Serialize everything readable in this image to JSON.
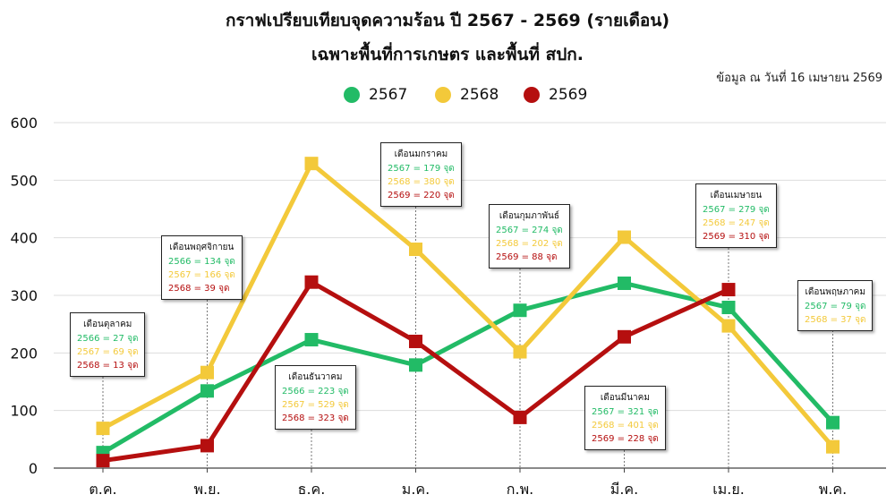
{
  "title_line1": "กราฟเปรียบเทียบจุดความร้อน ปี 2567 - 2569 (รายเดือน)",
  "title_line2": "เฉพาะพื้นที่การเกษตร และพื้นที่ สปก.",
  "source_note": "ข้อมูล ณ วันที่ 16 เมษายน 2569",
  "colors": {
    "2567": "#22bb66",
    "2568": "#f3c93a",
    "2569": "#b50f0f",
    "grid": "#dddddd",
    "axis": "#444444"
  },
  "chart_data": {
    "type": "line",
    "categories": [
      "ต.ค.",
      "พ.ย.",
      "ธ.ค.",
      "ม.ค.",
      "ก.พ.",
      "มี.ค.",
      "เม.ย.",
      "พ.ค."
    ],
    "yticks": [
      "0",
      "100",
      "200",
      "300",
      "400",
      "500",
      "600"
    ],
    "ylim": [
      0,
      600
    ],
    "grid": "horizontal",
    "legend_position": "top-center",
    "series": [
      {
        "name": "2567",
        "color": "#22bb66",
        "values": [
          27,
          134,
          223,
          179,
          274,
          321,
          279,
          79
        ]
      },
      {
        "name": "2568",
        "color": "#f3c93a",
        "values": [
          69,
          166,
          529,
          380,
          202,
          401,
          247,
          37
        ]
      },
      {
        "name": "2569",
        "color": "#b50f0f",
        "values": [
          13,
          39,
          323,
          220,
          88,
          228,
          310,
          null
        ]
      }
    ],
    "annotations": [
      {
        "cat": 0,
        "title": "เดือนตุลาคม",
        "lines": [
          {
            "text": "2566 = 27 จุด",
            "color": "#22bb66"
          },
          {
            "text": "2567 = 69 จุด",
            "color": "#f3c93a"
          },
          {
            "text": "2568 = 13 จุด",
            "color": "#b50f0f"
          }
        ]
      },
      {
        "cat": 1,
        "title": "เดือนพฤศจิกายน",
        "lines": [
          {
            "text": "2566 = 134 จุด",
            "color": "#22bb66"
          },
          {
            "text": "2567 = 166 จุด",
            "color": "#f3c93a"
          },
          {
            "text": "2568 = 39 จุด",
            "color": "#b50f0f"
          }
        ]
      },
      {
        "cat": 2,
        "title": "เดือนธันวาคม",
        "lines": [
          {
            "text": "2566 = 223 จุด",
            "color": "#22bb66"
          },
          {
            "text": "2567 = 529 จุด",
            "color": "#f3c93a"
          },
          {
            "text": "2568 = 323 จุด",
            "color": "#b50f0f"
          }
        ]
      },
      {
        "cat": 3,
        "title": "เดือนมกราคม",
        "lines": [
          {
            "text": "2567 = 179 จุด",
            "color": "#22bb66"
          },
          {
            "text": "2568 = 380 จุด",
            "color": "#f3c93a"
          },
          {
            "text": "2569 = 220 จุด",
            "color": "#b50f0f"
          }
        ]
      },
      {
        "cat": 4,
        "title": "เดือนกุมภาพันธ์",
        "lines": [
          {
            "text": "2567 = 274 จุด",
            "color": "#22bb66"
          },
          {
            "text": "2568 = 202 จุด",
            "color": "#f3c93a"
          },
          {
            "text": "2569 = 88 จุด",
            "color": "#b50f0f"
          }
        ]
      },
      {
        "cat": 5,
        "title": "เดือนมีนาคม",
        "lines": [
          {
            "text": "2567 = 321 จุด",
            "color": "#22bb66"
          },
          {
            "text": "2568 = 401 จุด",
            "color": "#f3c93a"
          },
          {
            "text": "2569 = 228 จุด",
            "color": "#b50f0f"
          }
        ]
      },
      {
        "cat": 6,
        "title": "เดือนเมษายน",
        "lines": [
          {
            "text": "2567 = 279 จุด",
            "color": "#22bb66"
          },
          {
            "text": "2568 = 247 จุด",
            "color": "#f3c93a"
          },
          {
            "text": "2569 = 310 จุด",
            "color": "#b50f0f"
          }
        ]
      },
      {
        "cat": 7,
        "title": "เดือนพฤษภาคม",
        "lines": [
          {
            "text": "2567 = 79 จุด",
            "color": "#22bb66"
          },
          {
            "text": "2568 = 37 จุด",
            "color": "#f3c93a"
          }
        ]
      }
    ]
  }
}
